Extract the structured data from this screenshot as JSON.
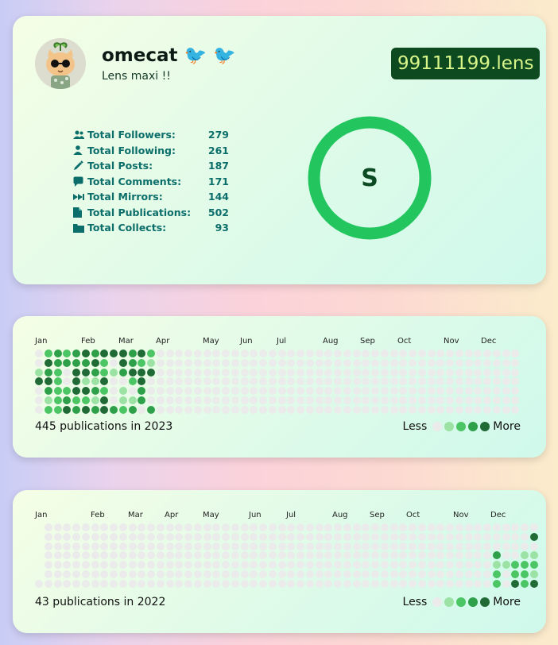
{
  "profile": {
    "name": "omecat 🐦 🐦",
    "bio": "Lens maxi !!",
    "handle": "99111199.lens",
    "rank": "S",
    "stats": [
      {
        "label": "Total Followers:",
        "value": "279",
        "icon": "followers-icon"
      },
      {
        "label": "Total Following:",
        "value": "261",
        "icon": "following-icon"
      },
      {
        "label": "Total Posts:",
        "value": "187",
        "icon": "pencil-icon"
      },
      {
        "label": "Total Comments:",
        "value": "171",
        "icon": "comment-icon"
      },
      {
        "label": "Total Mirrors:",
        "value": "144",
        "icon": "mirror-icon"
      },
      {
        "label": "Total Publications:",
        "value": "502",
        "icon": "document-icon"
      },
      {
        "label": "Total Collects:",
        "value": "93",
        "icon": "folder-icon"
      }
    ]
  },
  "colors": {
    "level0": "#ebebeb",
    "level1": "#9be2a4",
    "level2": "#4cc665",
    "level3": "#2fa04a",
    "level4": "#206b35",
    "ring": "#22c55e",
    "handle_bg": "#0e4a20",
    "handle_text": "#d8f58a"
  },
  "activity": [
    {
      "summary": "445 publications in 2023",
      "legend_less": "Less",
      "legend_more": "More",
      "months": [
        "Jan",
        "Feb",
        "Mar",
        "Apr",
        "May",
        "Jun",
        "Jul",
        "Aug",
        "Sep",
        "Oct",
        "Nov",
        "Dec"
      ],
      "start_weekday": 0,
      "weeks": 52,
      "levels": [
        "0232343444342",
        "0433334204321",
        "1320443213444",
        "4420411400240",
        "0322443201030",
        "0123221401130",
        "0224343432303"
      ]
    },
    {
      "summary": "43 publications in 2022",
      "legend_less": "Less",
      "legend_more": "More",
      "months": [
        "Jan",
        "Feb",
        "Mar",
        "Apr",
        "May",
        "Jun",
        "Jul",
        "Aug",
        "Sep",
        "Oct",
        "Nov",
        "Dec"
      ],
      "start_weekday": 6,
      "weeks": 53,
      "levels": [
        "0000000000000000000000000000000000000000000000000000000",
        "0000000000000000000000000000000000000000000000000000040",
        "0000000000000000000000000000000000000000000000000000004",
        "0000000000000000000000000000000000000000000000000300110",
        "0000000000000000000000000000000000000000000000000112220",
        "0000000000000000000000000000000000000000000000000202211",
        "0000000000000000000000000000000000000000000000000204242"
      ]
    }
  ]
}
